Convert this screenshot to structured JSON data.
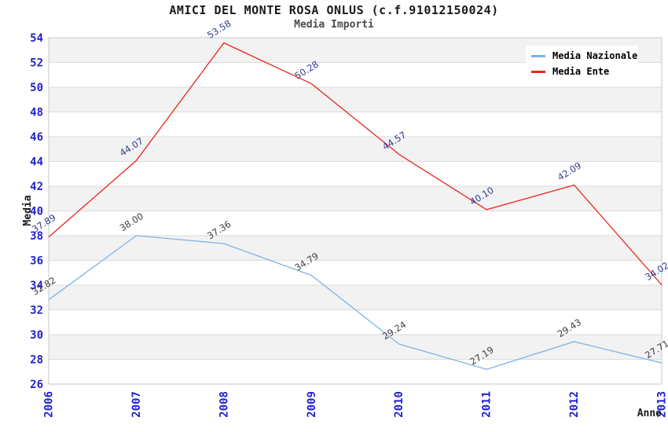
{
  "header": {
    "title": "AMICI DEL MONTE ROSA ONLUS (c.f.91012150024)",
    "subtitle": "Media Importi"
  },
  "chart_data": {
    "type": "line",
    "title": "AMICI DEL MONTE ROSA ONLUS (c.f.91012150024)",
    "subtitle": "Media Importi",
    "categories": [
      "2006",
      "2007",
      "2008",
      "2009",
      "2010",
      "2011",
      "2012",
      "2013"
    ],
    "xlabel": "Anno",
    "ylabel": "Media",
    "ylim": [
      26,
      54
    ],
    "ytick_step": 2,
    "grid": "horizontal-bands",
    "legend_position": "top-right",
    "series": [
      {
        "name": "Media Nazionale",
        "color": "#7db3e8",
        "label_color": "#3f3f3f",
        "values": [
          32.82,
          38.0,
          37.36,
          34.79,
          29.24,
          27.19,
          29.43,
          27.71
        ]
      },
      {
        "name": "Media Ente",
        "color": "#e8261c",
        "label_color": "#323a96",
        "values": [
          37.89,
          44.07,
          53.58,
          50.28,
          44.57,
          40.1,
          42.09,
          34.02
        ]
      }
    ],
    "colors": {
      "tick_label": "#2222cc",
      "band": "#f2f2f2",
      "grid": "#dcdcdc",
      "border": "#c8c8c8",
      "background": "#ffffff",
      "title": "#1a1a1a",
      "subtitle": "#4a4a4a",
      "legend_text": "#000000"
    }
  }
}
